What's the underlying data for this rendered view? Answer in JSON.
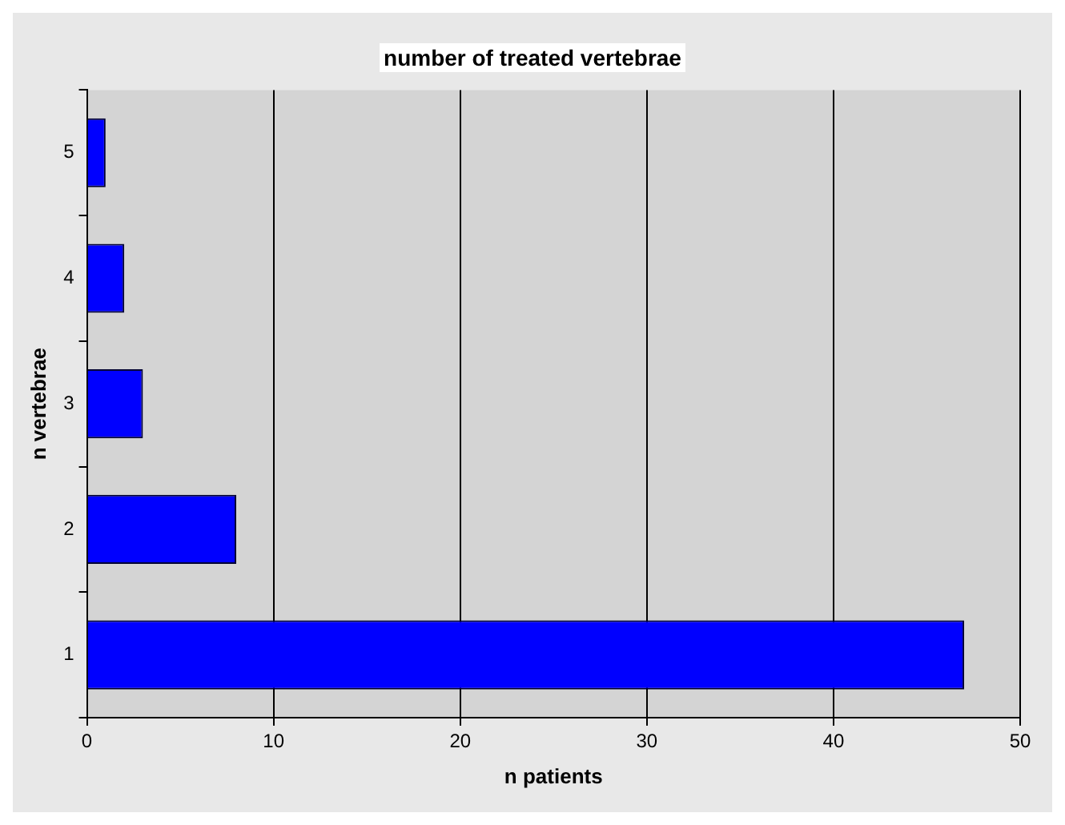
{
  "chart_data": {
    "type": "bar",
    "orientation": "horizontal",
    "title": "number of treated vertebrae",
    "xlabel": "n patients",
    "ylabel": "n vertebrae",
    "categories": [
      "5",
      "4",
      "3",
      "2",
      "1"
    ],
    "values": [
      1,
      2,
      3,
      8,
      47
    ],
    "color": "#0000ff",
    "xlim": [
      0,
      50
    ],
    "xticks": [
      0,
      10,
      20,
      30,
      40,
      50
    ],
    "grid": "x",
    "legend": false
  }
}
